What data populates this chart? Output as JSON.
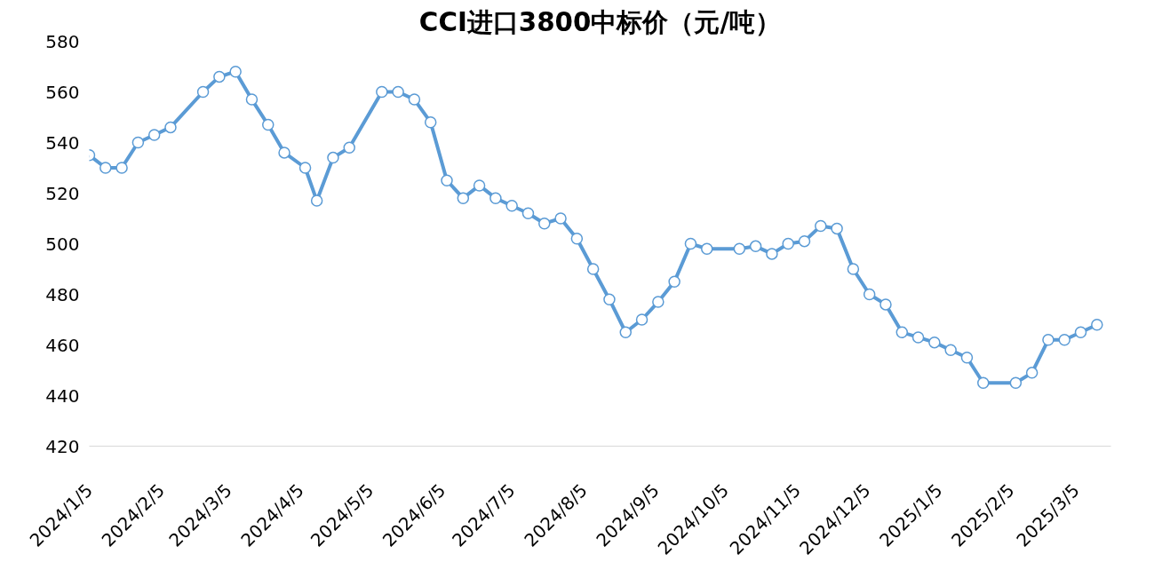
{
  "chart_data": {
    "type": "line",
    "title": "CCI进口3800中标价（元/吨）",
    "x": [
      "2024-01-05",
      "2024-01-12",
      "2024-01-19",
      "2024-01-26",
      "2024-02-02",
      "2024-02-09",
      "2024-02-23",
      "2024-03-01",
      "2024-03-08",
      "2024-03-15",
      "2024-03-22",
      "2024-03-29",
      "2024-04-07",
      "2024-04-12",
      "2024-04-19",
      "2024-04-26",
      "2024-05-10",
      "2024-05-17",
      "2024-05-24",
      "2024-05-31",
      "2024-06-07",
      "2024-06-14",
      "2024-06-21",
      "2024-06-28",
      "2024-07-05",
      "2024-07-12",
      "2024-07-19",
      "2024-07-26",
      "2024-08-02",
      "2024-08-09",
      "2024-08-16",
      "2024-08-23",
      "2024-08-30",
      "2024-09-06",
      "2024-09-13",
      "2024-09-20",
      "2024-09-27",
      "2024-10-11",
      "2024-10-18",
      "2024-10-25",
      "2024-11-01",
      "2024-11-08",
      "2024-11-15",
      "2024-11-22",
      "2024-11-29",
      "2024-12-06",
      "2024-12-13",
      "2024-12-20",
      "2024-12-27",
      "2025-01-03",
      "2025-01-10",
      "2025-01-17",
      "2025-01-24",
      "2025-02-07",
      "2025-02-14",
      "2025-02-21",
      "2025-02-28",
      "2025-03-07",
      "2025-03-14"
    ],
    "series": [
      {
        "color": "#5b9bd5",
        "values": [
          535,
          530,
          530,
          540,
          543,
          546,
          560,
          566,
          568,
          557,
          547,
          536,
          530,
          517,
          534,
          538,
          560,
          560,
          557,
          548,
          525,
          518,
          523,
          518,
          515,
          512,
          508,
          510,
          502,
          490,
          478,
          465,
          470,
          477,
          485,
          500,
          498,
          498,
          499,
          496,
          500,
          501,
          507,
          506,
          490,
          480,
          476,
          465,
          463,
          461,
          458,
          455,
          445,
          445,
          449,
          462,
          462,
          465,
          468
        ]
      }
    ],
    "xlim": [
      "2024-01-05",
      "2025-03-20"
    ],
    "xticks": [
      {
        "value": "2024-01-05",
        "label": "2024/1/5"
      },
      {
        "value": "2024-02-05",
        "label": "2024/2/5"
      },
      {
        "value": "2024-03-05",
        "label": "2024/3/5"
      },
      {
        "value": "2024-04-05",
        "label": "2024/4/5"
      },
      {
        "value": "2024-05-05",
        "label": "2024/5/5"
      },
      {
        "value": "2024-06-05",
        "label": "2024/6/5"
      },
      {
        "value": "2024-07-05",
        "label": "2024/7/5"
      },
      {
        "value": "2024-08-05",
        "label": "2024/8/5"
      },
      {
        "value": "2024-09-05",
        "label": "2024/9/5"
      },
      {
        "value": "2024-10-05",
        "label": "2024/10/5"
      },
      {
        "value": "2024-11-05",
        "label": "2024/11/5"
      },
      {
        "value": "2024-12-05",
        "label": "2024/12/5"
      },
      {
        "value": "2025-01-05",
        "label": "2025/1/5"
      },
      {
        "value": "2025-02-05",
        "label": "2025/2/5"
      },
      {
        "value": "2025-03-05",
        "label": "2025/3/5"
      }
    ],
    "ylim": [
      420,
      580
    ],
    "yticks": [
      420,
      440,
      460,
      480,
      500,
      520,
      540,
      560,
      580
    ],
    "grid": false,
    "marker": "circle",
    "line_style": "solid"
  }
}
